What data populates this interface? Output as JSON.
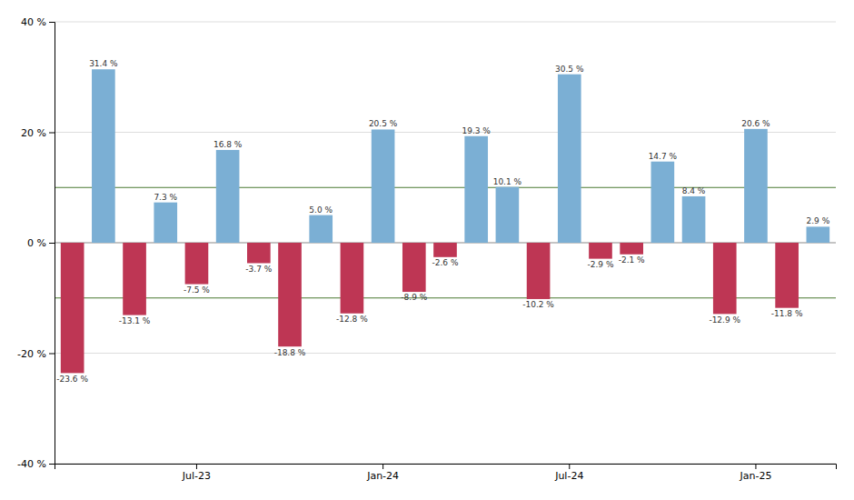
{
  "chart_data": {
    "type": "bar",
    "categories": [
      null,
      null,
      null,
      null,
      "Jul-23",
      null,
      null,
      null,
      null,
      null,
      "Jan-24",
      null,
      null,
      null,
      null,
      null,
      "Jul-24",
      null,
      null,
      null,
      null,
      null,
      "Jan-25",
      null,
      null
    ],
    "values": [
      -23.6,
      31.4,
      -13.1,
      7.3,
      -7.5,
      16.8,
      -3.7,
      -18.8,
      5.0,
      -12.8,
      20.5,
      -8.9,
      -2.6,
      19.3,
      10.1,
      -10.2,
      30.5,
      -2.9,
      -2.1,
      14.7,
      8.4,
      -12.9,
      20.6,
      -11.8,
      2.9
    ],
    "value_labels": [
      "-23.6 %",
      "31.4 %",
      "-13.1 %",
      "7.3 %",
      "-7.5 %",
      "16.8 %",
      "-3.7 %",
      "-18.8 %",
      "5.0 %",
      "-12.8 %",
      "20.5 %",
      "-8.9 %",
      "-2.6 %",
      "19.3 %",
      "10.1 %",
      "-10.2 %",
      "30.5 %",
      "-2.9 %",
      "-2.1 %",
      "14.7 %",
      "8.4 %",
      "-12.9 %",
      "20.6 %",
      "-11.8 %",
      "2.9 %"
    ],
    "colors": [
      "#be3654",
      "#7bafd4",
      "#be3654",
      "#7bafd4",
      "#be3654",
      "#7bafd4",
      "#be3654",
      "#be3654",
      "#7bafd4",
      "#be3654",
      "#7bafd4",
      "#be3654",
      "#be3654",
      "#7bafd4",
      "#7bafd4",
      "#be3654",
      "#7bafd4",
      "#be3654",
      "#be3654",
      "#7bafd4",
      "#7bafd4",
      "#be3654",
      "#7bafd4",
      "#be3654",
      "#7bafd4"
    ],
    "data_labels": true,
    "ylim": [
      -40,
      40
    ],
    "yticks": [
      {
        "value": -40,
        "label": "-40 %"
      },
      {
        "value": -20,
        "label": "-20 %"
      },
      {
        "value": 0,
        "label": "0 %"
      },
      {
        "value": 20,
        "label": "20 %"
      },
      {
        "value": 40,
        "label": "40 %"
      }
    ],
    "grid": true,
    "reference_lines": [
      {
        "value": 10,
        "color": "#4a7a30"
      },
      {
        "value": -10,
        "color": "#4a7a30"
      }
    ]
  }
}
